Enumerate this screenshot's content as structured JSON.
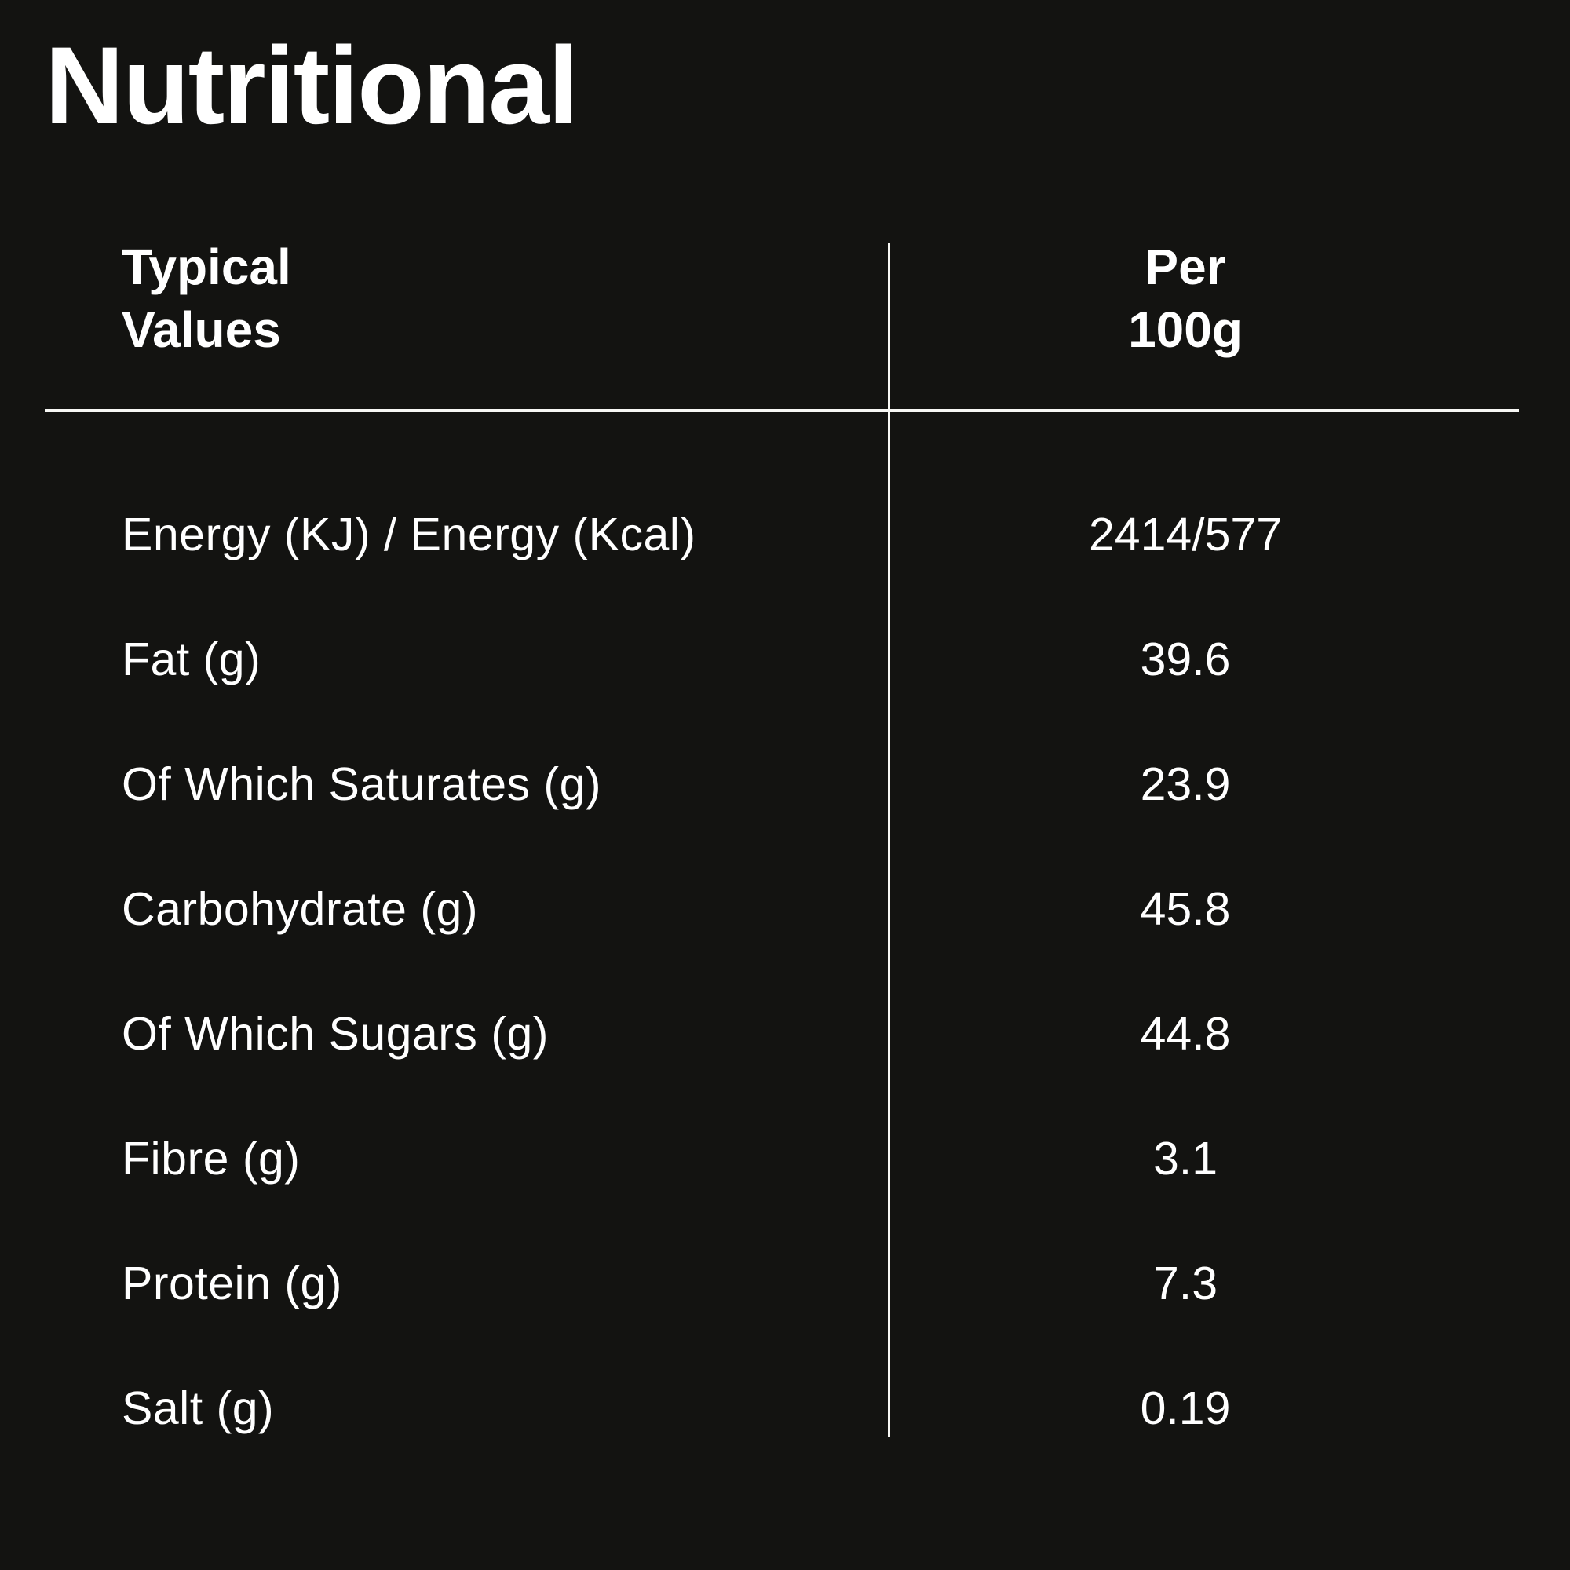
{
  "panel": {
    "title": "Nutritional",
    "colors": {
      "background": "#131311",
      "text": "#ffffff",
      "rule": "#f7f7f4"
    }
  },
  "table": {
    "header": {
      "col_label": "Typical\nValues",
      "col_value": "Per\n100g"
    },
    "rows": [
      {
        "label": "Energy (KJ) / Energy (Kcal)",
        "value": "2414/577"
      },
      {
        "label": "Fat (g)",
        "value": "39.6"
      },
      {
        "label": "Of Which Saturates (g)",
        "value": "23.9"
      },
      {
        "label": "Carbohydrate (g)",
        "value": "45.8"
      },
      {
        "label": "Of Which Sugars (g)",
        "value": "44.8"
      },
      {
        "label": "Fibre (g)",
        "value": "3.1"
      },
      {
        "label": "Protein (g)",
        "value": "7.3"
      },
      {
        "label": "Salt (g)",
        "value": "0.19"
      }
    ]
  }
}
